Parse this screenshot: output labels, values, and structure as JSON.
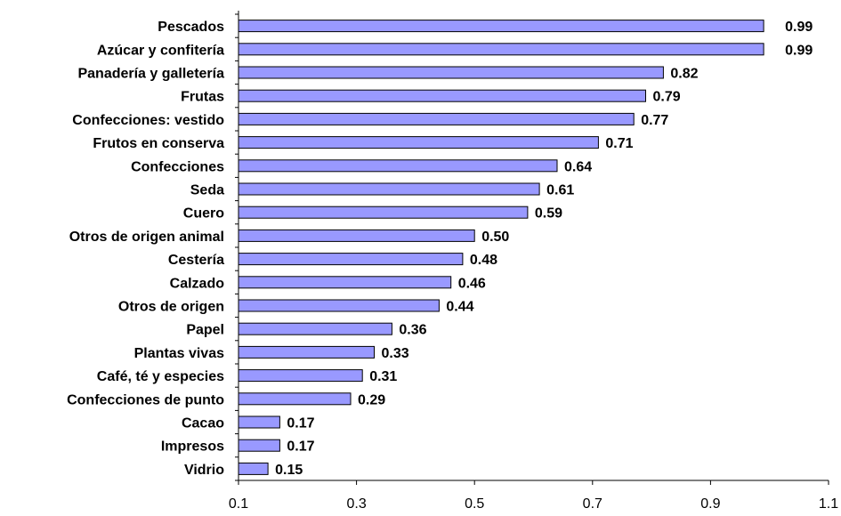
{
  "chart_data": {
    "type": "bar",
    "orientation": "horizontal",
    "categories": [
      "Pescados",
      "Azúcar y confitería",
      "Panadería y galletería",
      "Frutas",
      "Confecciones: vestido",
      "Frutos en conserva",
      "Confecciones",
      "Seda",
      "Cuero",
      "Otros de origen animal",
      "Cestería",
      "Calzado",
      "Otros de origen",
      "Papel",
      "Plantas vivas",
      "Café, té y especies",
      "Confecciones de punto",
      "Cacao",
      "Impresos",
      "Vidrio"
    ],
    "values": [
      0.99,
      0.99,
      0.82,
      0.79,
      0.77,
      0.71,
      0.64,
      0.61,
      0.59,
      0.5,
      0.48,
      0.46,
      0.44,
      0.36,
      0.33,
      0.31,
      0.29,
      0.17,
      0.17,
      0.15
    ],
    "value_labels": [
      "0.99",
      "0.99",
      "0.82",
      "0.79",
      "0.77",
      "0.71",
      "0.64",
      "0.61",
      "0.59",
      "0.50",
      "0.48",
      "0.46",
      "0.44",
      "0.36",
      "0.33",
      "0.31",
      "0.29",
      "0.17",
      "0.17",
      "0.15"
    ],
    "xlim": [
      0.1,
      1.1
    ],
    "xticks": [
      "0.1",
      "0.3",
      "0.5",
      "0.7",
      "0.9",
      "1.1"
    ],
    "title": "",
    "xlabel": "",
    "ylabel": "",
    "grid": false,
    "bar_color": "#9999ff",
    "bar_edge_color": "#000000"
  }
}
